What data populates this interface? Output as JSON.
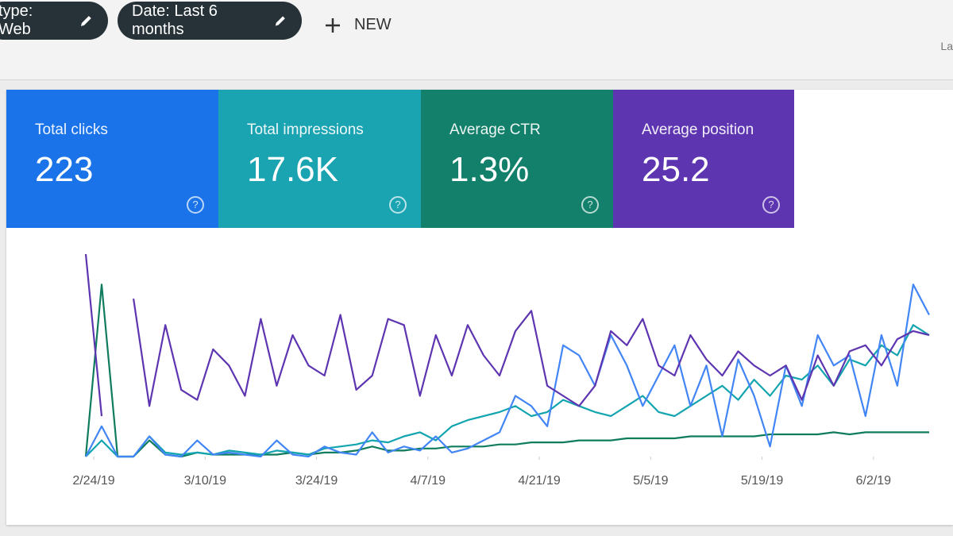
{
  "filters": [
    "type: Web",
    "Date: Last 6 months"
  ],
  "new_button": "NEW",
  "corner_text": "La",
  "metrics": [
    {
      "label": "Total clicks",
      "value": "223",
      "color": "#1a73e8"
    },
    {
      "label": "Total impressions",
      "value": "17.6K",
      "color": "#1aa3b1"
    },
    {
      "label": "Average CTR",
      "value": "1.3%",
      "color": "#12806a"
    },
    {
      "label": "Average position",
      "value": "25.2",
      "color": "#5e35b1"
    }
  ],
  "chart_data": {
    "type": "line",
    "x": [
      0,
      2,
      4,
      6,
      8,
      10,
      12,
      14,
      16,
      18,
      20,
      22,
      24,
      26,
      28,
      30,
      32,
      34,
      36,
      38,
      40,
      42,
      44,
      46,
      48,
      50,
      52,
      54,
      56,
      58,
      60,
      62,
      64,
      66,
      68,
      70,
      72,
      74,
      76,
      78,
      80,
      82,
      84,
      86,
      88,
      90,
      92,
      94,
      96,
      98,
      100,
      102,
      104,
      106
    ],
    "xlim": [
      0,
      107
    ],
    "ylim": [
      0,
      100
    ],
    "xticks": [
      {
        "value": 1,
        "label": "2/24/19"
      },
      {
        "value": 15,
        "label": "3/10/19"
      },
      {
        "value": 29,
        "label": "3/24/19"
      },
      {
        "value": 43,
        "label": "4/7/19"
      },
      {
        "value": 57,
        "label": "4/21/19"
      },
      {
        "value": 71,
        "label": "5/5/19"
      },
      {
        "value": 85,
        "label": "5/19/19"
      },
      {
        "value": 99,
        "label": "6/2/19"
      }
    ],
    "series": [
      {
        "color": "#0f7d5d",
        "values": [
          0,
          85,
          0,
          0,
          8,
          1,
          0,
          2,
          1,
          1,
          1,
          1,
          1,
          2,
          1,
          2,
          2,
          3,
          5,
          3,
          3,
          4,
          4,
          5,
          5,
          5,
          6,
          6,
          7,
          7,
          7,
          8,
          8,
          8,
          9,
          9,
          9,
          9,
          10,
          10,
          10,
          10,
          10,
          11,
          11,
          11,
          11,
          12,
          11,
          12,
          12,
          12,
          12,
          12
        ]
      },
      {
        "color": "#12a4af",
        "values": [
          0,
          8,
          0,
          0,
          10,
          2,
          1,
          2,
          1,
          3,
          2,
          1,
          3,
          2,
          1,
          4,
          5,
          6,
          8,
          7,
          10,
          12,
          8,
          15,
          18,
          20,
          22,
          25,
          20,
          22,
          28,
          25,
          22,
          20,
          25,
          30,
          22,
          20,
          25,
          30,
          35,
          28,
          38,
          30,
          40,
          38,
          45,
          35,
          48,
          45,
          55,
          50,
          65,
          60
        ]
      },
      {
        "color": "#4285f4",
        "values": [
          0,
          15,
          0,
          0,
          10,
          1,
          0,
          8,
          1,
          2,
          1,
          0,
          8,
          1,
          0,
          5,
          2,
          1,
          12,
          2,
          5,
          3,
          10,
          2,
          4,
          8,
          12,
          30,
          25,
          15,
          55,
          50,
          35,
          60,
          45,
          25,
          40,
          55,
          25,
          45,
          10,
          48,
          30,
          5,
          45,
          25,
          60,
          45,
          50,
          20,
          60,
          35,
          85,
          70
        ]
      },
      {
        "color": "#5e35b1",
        "values": [
          100,
          20,
          null,
          78,
          25,
          65,
          33,
          28,
          53,
          45,
          30,
          68,
          35,
          60,
          45,
          40,
          70,
          33,
          40,
          68,
          65,
          30,
          60,
          40,
          65,
          50,
          40,
          62,
          72,
          35,
          30,
          25,
          35,
          62,
          55,
          68,
          45,
          40,
          60,
          48,
          40,
          52,
          45,
          40,
          45,
          28,
          50,
          35,
          52,
          55,
          45,
          58,
          62,
          60
        ]
      }
    ]
  }
}
